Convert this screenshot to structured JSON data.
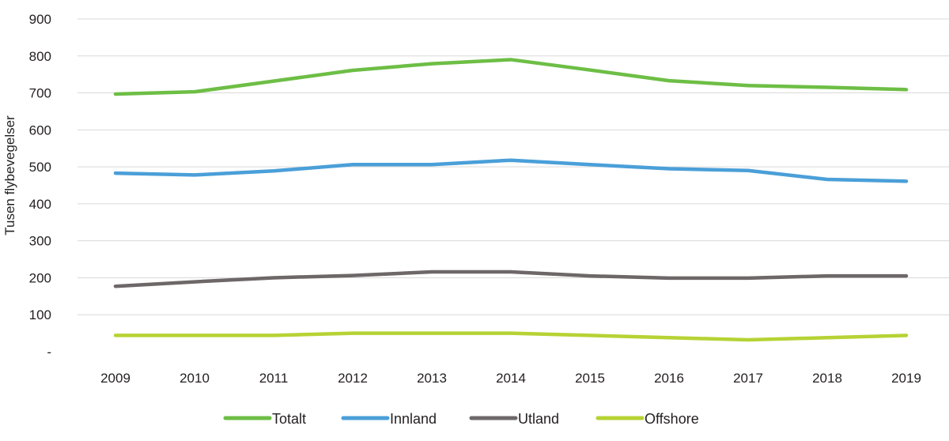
{
  "chart_data": {
    "type": "line",
    "title": "",
    "xlabel": "",
    "ylabel": "Tusen flybevegelser",
    "categories": [
      "2009",
      "2010",
      "2011",
      "2012",
      "2013",
      "2014",
      "2015",
      "2016",
      "2017",
      "2018",
      "2019"
    ],
    "ylim": [
      0,
      900
    ],
    "yticks": [
      {
        "value": 0,
        "label": "-"
      },
      {
        "value": 100,
        "label": "100"
      },
      {
        "value": 200,
        "label": "200"
      },
      {
        "value": 300,
        "label": "300"
      },
      {
        "value": 400,
        "label": "400"
      },
      {
        "value": 500,
        "label": "500"
      },
      {
        "value": 600,
        "label": "600"
      },
      {
        "value": 700,
        "label": "700"
      },
      {
        "value": 800,
        "label": "800"
      },
      {
        "value": 900,
        "label": "900"
      }
    ],
    "grid": true,
    "legend_position": "bottom",
    "series": [
      {
        "name": "Totalt",
        "color": "#6dbe45",
        "values": [
          697,
          703,
          732,
          761,
          779,
          790,
          762,
          733,
          720,
          715,
          709
        ]
      },
      {
        "name": "Innland",
        "color": "#4a9fd8",
        "values": [
          483,
          478,
          489,
          506,
          506,
          518,
          506,
          495,
          490,
          466,
          461
        ]
      },
      {
        "name": "Utland",
        "color": "#6d6768",
        "values": [
          177,
          189,
          200,
          206,
          216,
          216,
          205,
          199,
          199,
          205,
          205
        ]
      },
      {
        "name": "Offshore",
        "color": "#b5d334",
        "values": [
          44,
          44,
          44,
          50,
          50,
          50,
          44,
          38,
          32,
          38,
          44
        ]
      }
    ]
  }
}
